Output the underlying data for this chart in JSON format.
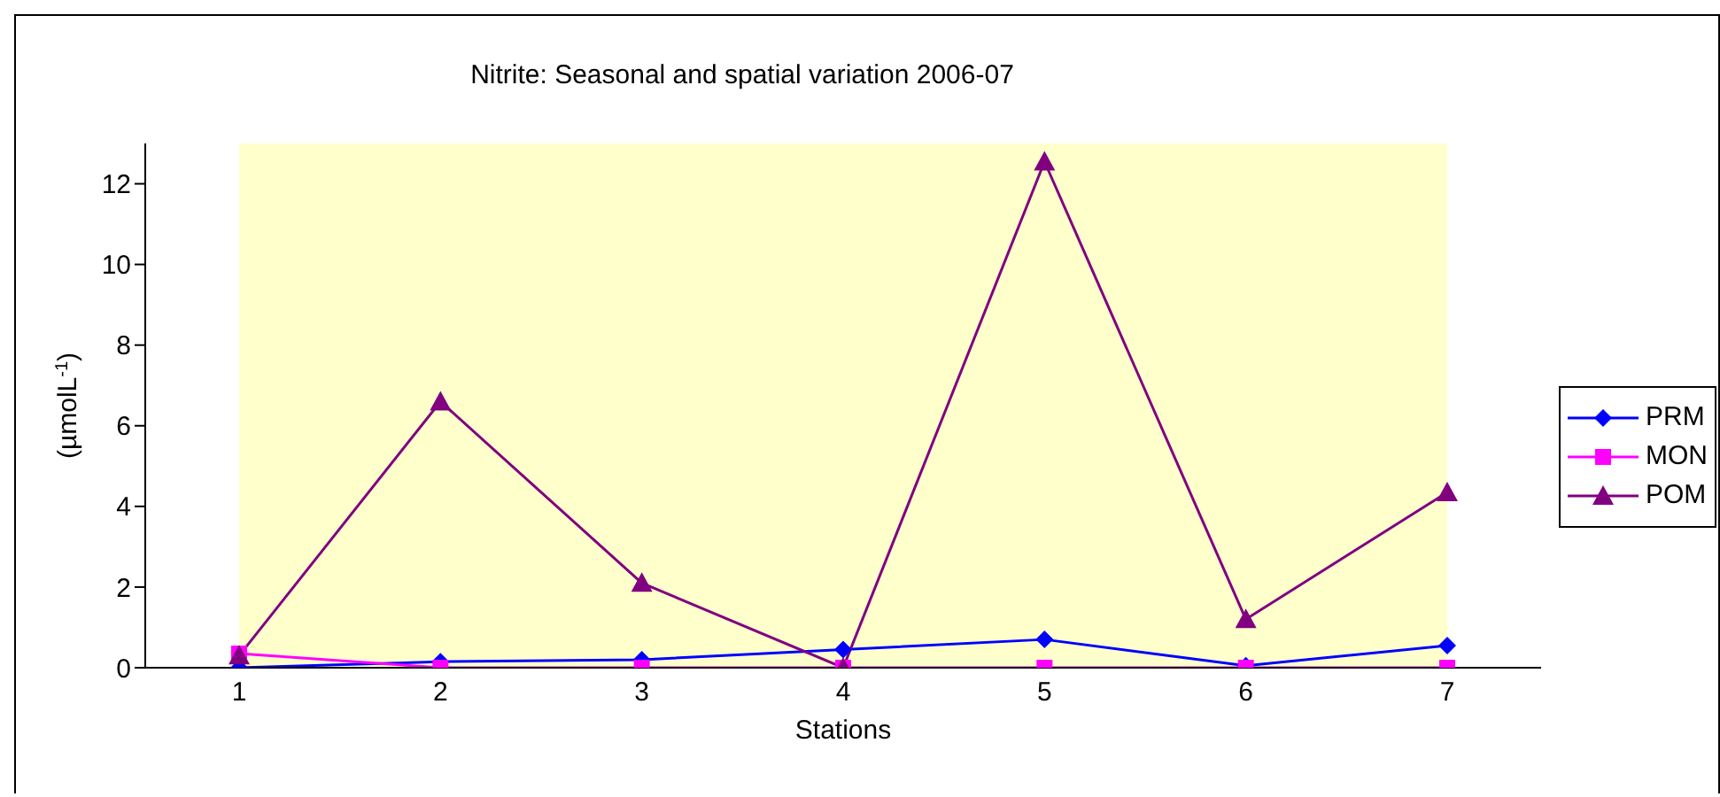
{
  "chart_data": {
    "type": "line",
    "title": "Nitrite: Seasonal and spatial variation 2006-07",
    "xlabel": "Stations",
    "ylabel": "(µmolL$^{-1}$)",
    "categories": [
      "1",
      "2",
      "3",
      "4",
      "5",
      "6",
      "7"
    ],
    "series": [
      {
        "name": "PRM",
        "color": "#0000ff",
        "marker": "diamond",
        "values": [
          0,
          0.15,
          0.2,
          0.45,
          0.7,
          0.05,
          0.55
        ]
      },
      {
        "name": "MON",
        "color": "#ff00ff",
        "marker": "square",
        "values": [
          0.35,
          0,
          0,
          0,
          0,
          0,
          0
        ]
      },
      {
        "name": "POM",
        "color": "#800080",
        "marker": "triangle",
        "values": [
          0.3,
          6.6,
          2.1,
          0,
          12.55,
          1.2,
          4.35
        ]
      }
    ],
    "ylim": [
      0,
      13
    ],
    "yticks": [
      0,
      2,
      4,
      6,
      8,
      10,
      12
    ],
    "grid": false,
    "legend": "right"
  }
}
